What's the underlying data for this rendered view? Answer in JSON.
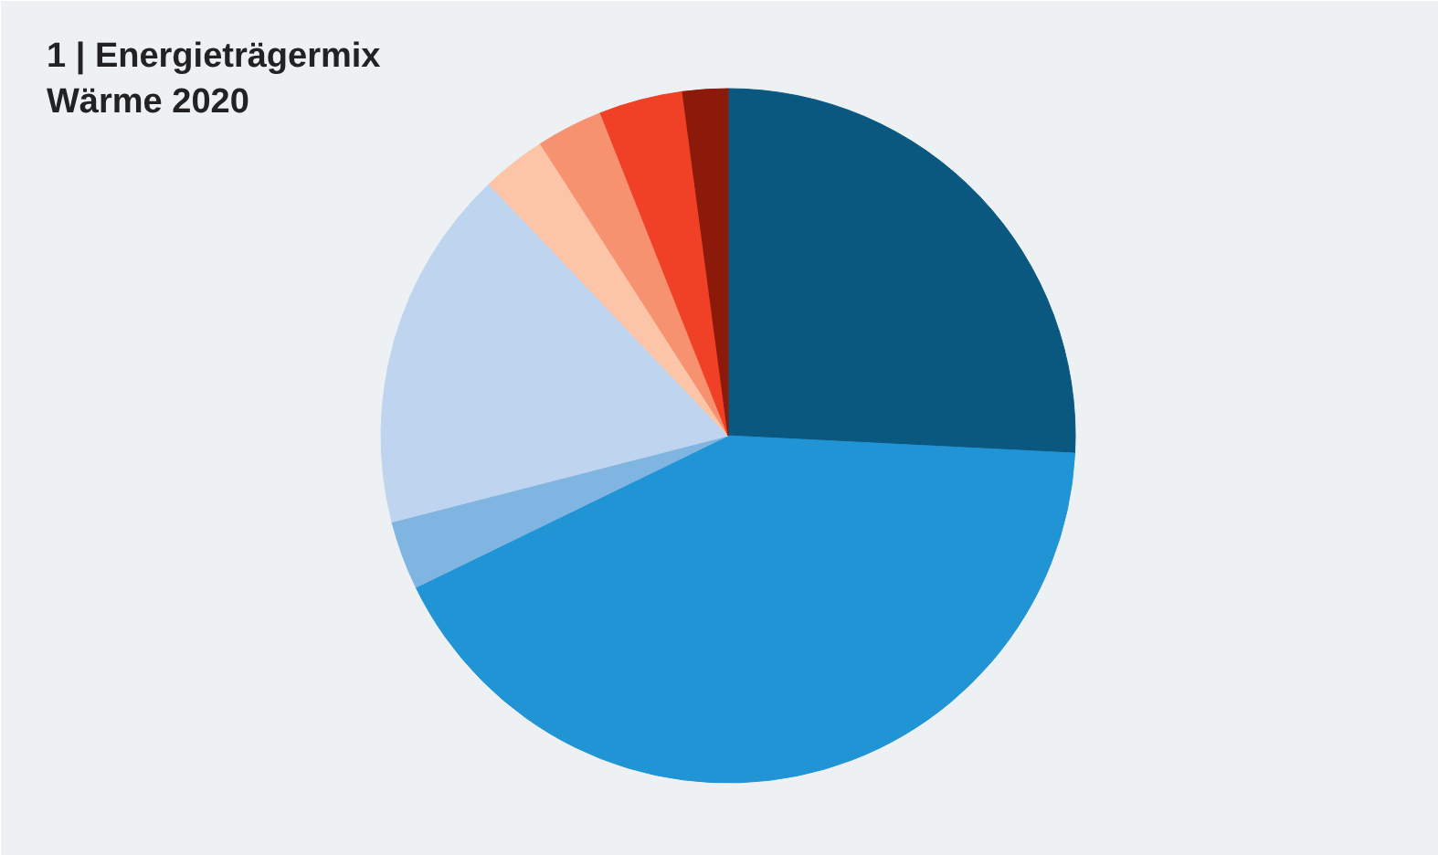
{
  "chart_data": {
    "type": "pie",
    "title": "1 | Energieträgermix\nWärme 2020",
    "categories": [
      null,
      null,
      null,
      null,
      null,
      null,
      null,
      null
    ],
    "values": [
      25.8,
      42.0,
      3.2,
      16.9,
      3.0,
      3.1,
      3.9,
      2.1
    ],
    "colors": [
      "#0a5880",
      "#2094d4",
      "#80b5e2",
      "#bfd5ef",
      "#fcc5a8",
      "#f79270",
      "#f04025",
      "#8b1a0b"
    ]
  }
}
